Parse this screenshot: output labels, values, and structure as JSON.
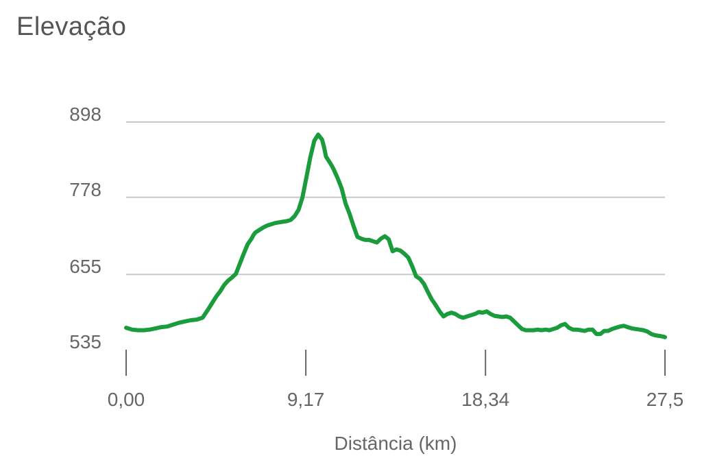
{
  "chart_data": {
    "type": "line",
    "title": "Elevação",
    "xlabel": "Distância (km)",
    "ylabel": "",
    "xlim": [
      0,
      27.5
    ],
    "ylim": [
      535,
      898
    ],
    "x_ticks": [
      "0,00",
      "9,17",
      "18,34",
      "27,5"
    ],
    "x_tick_values": [
      0,
      9.17,
      18.34,
      27.5
    ],
    "y_ticks": [
      "898",
      "778",
      "655",
      "535"
    ],
    "y_tick_values": [
      898,
      778,
      655,
      535
    ],
    "grid": true,
    "line_color": "#1a9b3c",
    "series": [
      {
        "x": [
          0,
          0.3,
          0.6,
          0.9,
          1.2,
          1.5,
          1.8,
          2.1,
          2.4,
          2.7,
          3.0,
          3.3,
          3.6,
          3.9,
          4.2,
          4.4,
          4.6,
          4.8,
          5.0,
          5.2,
          5.4,
          5.6,
          5.8,
          6.0,
          6.2,
          6.4,
          6.5,
          6.6,
          6.8,
          7.0,
          7.2,
          7.4,
          7.6,
          7.8,
          8.0,
          8.2,
          8.4,
          8.6,
          8.8,
          9.0,
          9.2,
          9.4,
          9.6,
          9.8,
          10.0,
          10.1,
          10.2,
          10.4,
          10.5,
          10.6,
          10.8,
          11.0,
          11.2,
          11.4,
          11.6,
          11.8,
          12.0,
          12.2,
          12.4,
          12.6,
          12.8,
          13.0,
          13.2,
          13.4,
          13.6,
          13.8,
          14.0,
          14.2,
          14.4,
          14.6,
          14.8,
          15.0,
          15.2,
          15.4,
          15.6,
          15.8,
          16.0,
          16.2,
          16.4,
          16.6,
          16.8,
          17.0,
          17.2,
          17.4,
          17.6,
          17.8,
          18.0,
          18.2,
          18.4,
          18.6,
          18.8,
          19.0,
          19.2,
          19.4,
          19.6,
          19.8,
          20.0,
          20.2,
          20.4,
          20.6,
          20.8,
          21.0,
          21.2,
          21.4,
          21.6,
          21.8,
          22.0,
          22.2,
          22.4,
          22.6,
          22.8,
          23.0,
          23.2,
          23.4,
          23.6,
          23.8,
          24.0,
          24.2,
          24.4,
          24.6,
          24.8,
          25.0,
          25.2,
          25.4,
          25.6,
          25.8,
          26.0,
          26.2,
          26.4,
          26.6,
          26.8,
          27.0,
          27.2,
          27.4,
          27.5
        ],
        "y": [
          570,
          567,
          566,
          566,
          567,
          569,
          571,
          572,
          575,
          578,
          580,
          582,
          583,
          586,
          600,
          610,
          620,
          628,
          638,
          645,
          650,
          656,
          672,
          688,
          703,
          712,
          718,
          722,
          726,
          730,
          733,
          735,
          737,
          738,
          739,
          740,
          742,
          748,
          758,
          778,
          810,
          842,
          868,
          878,
          870,
          858,
          843,
          833,
          828,
          822,
          808,
          792,
          768,
          752,
          733,
          715,
          712,
          710,
          710,
          708,
          706,
          712,
          716,
          711,
          692,
          695,
          693,
          688,
          682,
          668,
          652,
          648,
          640,
          627,
          615,
          606,
          596,
          588,
          592,
          594,
          592,
          588,
          586,
          588,
          590,
          592,
          595,
          594,
          596,
          592,
          589,
          588,
          587,
          588,
          586,
          580,
          574,
          568,
          566,
          566,
          566,
          567,
          566,
          567,
          566,
          568,
          570,
          574,
          576,
          570,
          567,
          567,
          566,
          565,
          567,
          567,
          560,
          560,
          565,
          565,
          568,
          570,
          572,
          573,
          571,
          569,
          568,
          567,
          566,
          564,
          560,
          558,
          557,
          556,
          555
        ]
      }
    ]
  }
}
